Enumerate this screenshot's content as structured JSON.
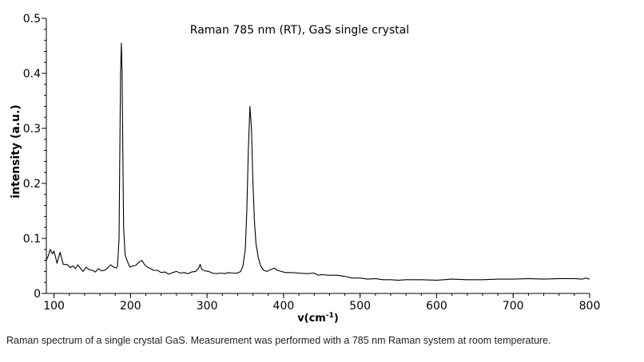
{
  "chart_data": {
    "type": "line",
    "title": "Raman 785 nm (RT), GaS single crystal",
    "xlabel": "v(cm",
    "xlabel_sup": "-1",
    "xlabel_end": ")",
    "ylabel": "intensity (a.u.)",
    "xlim": [
      90,
      800
    ],
    "ylim": [
      0,
      0.5
    ],
    "xticks": [
      100,
      200,
      300,
      400,
      500,
      600,
      700,
      800
    ],
    "yticks": [
      0,
      0.1,
      0.2,
      0.3,
      0.4,
      0.5
    ],
    "ytick_labels": [
      "0",
      "0.1",
      "0.2",
      "0.3",
      "0.4",
      "0.5"
    ],
    "grid": false,
    "series": [
      {
        "name": "GaS",
        "color": "#000000",
        "x": [
          90,
          93,
          95,
          98,
          100,
          104,
          108,
          112,
          118,
          121,
          125,
          128,
          131,
          135,
          138,
          142,
          146,
          150,
          154,
          158,
          162,
          166,
          170,
          174,
          178,
          181,
          183,
          185,
          186,
          187,
          188,
          189,
          190,
          191,
          193,
          196,
          199,
          203,
          207,
          211,
          215,
          218,
          222,
          226,
          230,
          235,
          240,
          245,
          250,
          255,
          260,
          265,
          270,
          275,
          280,
          285,
          289,
          291,
          293,
          297,
          302,
          307,
          312,
          318,
          323,
          328,
          333,
          340,
          344,
          347,
          350,
          352,
          354,
          356,
          358,
          360,
          362,
          364,
          367,
          370,
          374,
          378,
          383,
          388,
          392,
          397,
          402,
          410,
          420,
          430,
          440,
          445,
          450,
          460,
          470,
          475,
          480,
          490,
          500,
          510,
          520,
          530,
          540,
          550,
          560,
          580,
          600,
          620,
          640,
          660,
          680,
          700,
          720,
          740,
          760,
          780,
          790,
          795,
          800
        ],
        "y": [
          0.06,
          0.07,
          0.08,
          0.072,
          0.077,
          0.055,
          0.075,
          0.053,
          0.052,
          0.047,
          0.05,
          0.045,
          0.052,
          0.045,
          0.04,
          0.048,
          0.043,
          0.042,
          0.039,
          0.045,
          0.041,
          0.042,
          0.046,
          0.052,
          0.048,
          0.046,
          0.05,
          0.1,
          0.25,
          0.4,
          0.455,
          0.4,
          0.25,
          0.12,
          0.07,
          0.058,
          0.048,
          0.05,
          0.051,
          0.057,
          0.06,
          0.053,
          0.048,
          0.045,
          0.042,
          0.042,
          0.038,
          0.039,
          0.035,
          0.038,
          0.04,
          0.037,
          0.038,
          0.036,
          0.039,
          0.04,
          0.046,
          0.053,
          0.044,
          0.041,
          0.04,
          0.037,
          0.036,
          0.037,
          0.036,
          0.038,
          0.037,
          0.037,
          0.04,
          0.05,
          0.08,
          0.15,
          0.26,
          0.34,
          0.3,
          0.2,
          0.13,
          0.09,
          0.065,
          0.05,
          0.042,
          0.04,
          0.043,
          0.046,
          0.042,
          0.04,
          0.038,
          0.038,
          0.037,
          0.036,
          0.037,
          0.033,
          0.034,
          0.033,
          0.033,
          0.032,
          0.031,
          0.028,
          0.028,
          0.026,
          0.027,
          0.025,
          0.025,
          0.024,
          0.025,
          0.025,
          0.024,
          0.026,
          0.025,
          0.025,
          0.026,
          0.026,
          0.027,
          0.026,
          0.027,
          0.027,
          0.026,
          0.028,
          0.026
        ]
      }
    ]
  },
  "caption": "Raman spectrum of a single crystal GaS. Measurement was performed with a 785 nm Raman system at room temperature."
}
